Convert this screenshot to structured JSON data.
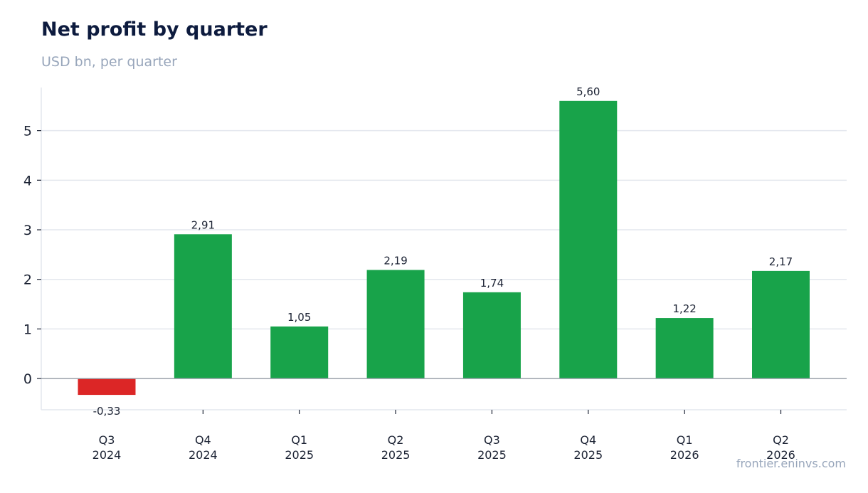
{
  "title": "Net profit by quarter",
  "subtitle": "USD bn, per quarter",
  "source": "frontier.eninvs.com",
  "colors": {
    "positive": "#18a34a",
    "negative": "#dc2626",
    "grid": "#e4e7ee",
    "zero_line": "#9aa1aa",
    "axis": "#e4e7ee",
    "text": "#1b2233"
  },
  "chart_data": {
    "type": "bar",
    "title": "Net profit by quarter",
    "subtitle": "USD bn, per quarter",
    "categories": [
      [
        "Q3",
        "2024"
      ],
      [
        "Q4",
        "2024"
      ],
      [
        "Q1",
        "2025"
      ],
      [
        "Q2",
        "2025"
      ],
      [
        "Q3",
        "2025"
      ],
      [
        "Q4",
        "2025"
      ],
      [
        "Q1",
        "2026"
      ],
      [
        "Q2",
        "2026"
      ]
    ],
    "values": [
      -0.33,
      2.91,
      1.05,
      2.19,
      1.74,
      5.6,
      1.22,
      2.17
    ],
    "data_labels": [
      "-0,33",
      "2,91",
      "1,05",
      "2,19",
      "1,74",
      "5,60",
      "1,22",
      "2,17"
    ],
    "yticks": [
      0,
      1,
      2,
      3,
      4,
      5
    ],
    "ylim": [
      -0.63,
      5.87
    ],
    "xlabel": "",
    "ylabel": "",
    "grid": true,
    "legend": "none"
  }
}
